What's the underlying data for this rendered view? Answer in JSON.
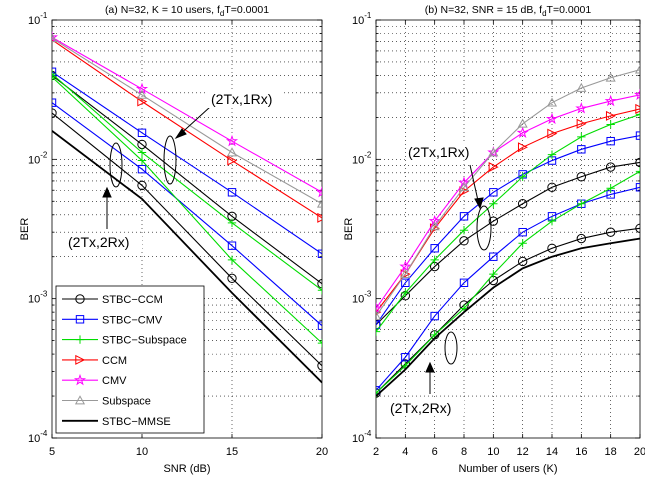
{
  "chart_data": [
    {
      "type": "line",
      "title": "(a) N=32, K = 10 users, f",
      "title_sub": "d",
      "title_end": "T=0.0001",
      "xlabel": "SNR (dB)",
      "ylabel": "BER",
      "xlim": [
        5,
        20
      ],
      "ylim": [
        0.0001,
        0.1
      ],
      "yscale": "log",
      "xticks": [
        "5",
        "10",
        "15",
        "20"
      ],
      "yticks": [
        {
          "base": "10",
          "exp": "-4"
        },
        {
          "base": "10",
          "exp": "-3"
        },
        {
          "base": "10",
          "exp": "-2"
        },
        {
          "base": "10",
          "exp": "-1"
        }
      ],
      "grid": true,
      "legend_position": "bottom-left",
      "annotations": [
        "(2Tx,1Rx)",
        "(2Tx,2Rx)"
      ],
      "series": [
        {
          "name": "STBC−CCM",
          "marker": "circle",
          "color": "#000000",
          "x": [
            5,
            10,
            15,
            20
          ],
          "y": [
            0.0215,
            0.0065,
            0.0014,
            0.00033
          ],
          "x2": [
            5,
            10,
            15,
            20
          ],
          "y2": [
            0.04,
            0.0128,
            0.0039,
            0.00128
          ]
        },
        {
          "name": "STBC−CMV",
          "marker": "square",
          "color": "#0000ff",
          "x": [
            5,
            10,
            15,
            20
          ],
          "y": [
            0.0255,
            0.0085,
            0.0024,
            0.00064
          ],
          "x2": [
            5,
            10,
            15,
            20
          ],
          "y2": [
            0.0425,
            0.0155,
            0.0058,
            0.0021
          ]
        },
        {
          "name": "STBC−Subspace",
          "marker": "plus",
          "color": "#00dd00",
          "x": [
            5,
            10,
            15,
            20
          ],
          "y": [
            0.039,
            0.0098,
            0.0019,
            0.00048
          ],
          "x2": [
            5,
            10,
            15,
            20
          ],
          "y2": [
            0.041,
            0.0112,
            0.0035,
            0.00115
          ]
        },
        {
          "name": "CCM",
          "marker": "triangle-right",
          "color": "#ff0000",
          "x": [
            5,
            10,
            15,
            20
          ],
          "y": [
            0.072,
            0.026,
            0.0098,
            0.0038
          ]
        },
        {
          "name": "CMV",
          "marker": "star",
          "color": "#ff00ff",
          "x": [
            5,
            10,
            15,
            20
          ],
          "y": [
            0.075,
            0.032,
            0.0135,
            0.0058
          ]
        },
        {
          "name": "Subspace",
          "marker": "triangle-up",
          "color": "#999999",
          "x": [
            5,
            10,
            15,
            20
          ],
          "y": [
            0.074,
            0.029,
            0.0112,
            0.0048
          ]
        },
        {
          "name": "STBC−MMSE",
          "marker": "none",
          "color": "#000000",
          "x": [
            5,
            10,
            15,
            20
          ],
          "y": [
            0.016,
            0.0052,
            0.0011,
            0.00025
          ]
        }
      ]
    },
    {
      "type": "line",
      "title": "(b) N=32, SNR = 15 dB, f",
      "title_sub": "d",
      "title_end": "T=0.0001",
      "xlabel": "Number of users (K)",
      "ylabel": "BER",
      "xlim": [
        2,
        20
      ],
      "ylim": [
        0.0001,
        0.1
      ],
      "yscale": "log",
      "xticks": [
        "2",
        "4",
        "6",
        "8",
        "10",
        "12",
        "14",
        "16",
        "18",
        "20"
      ],
      "yticks": [
        {
          "base": "10",
          "exp": "-4"
        },
        {
          "base": "10",
          "exp": "-3"
        },
        {
          "base": "10",
          "exp": "-2"
        },
        {
          "base": "10",
          "exp": "-1"
        }
      ],
      "grid": true,
      "annotations": [
        "(2Tx,1Rx)",
        "(2Tx,2Rx)"
      ],
      "series": [
        {
          "name": "STBC−CCM",
          "marker": "circle",
          "color": "#000000",
          "x": [
            2,
            4,
            6,
            8,
            10,
            12,
            14,
            16,
            18,
            20
          ],
          "y": [
            0.00021,
            0.00034,
            0.00055,
            0.0009,
            0.00135,
            0.00185,
            0.0023,
            0.0027,
            0.003,
            0.0032
          ],
          "x2": [
            2,
            4,
            6,
            8,
            10,
            12,
            14,
            16,
            18,
            20
          ],
          "y2": [
            0.00065,
            0.00105,
            0.0017,
            0.0026,
            0.0036,
            0.0048,
            0.0063,
            0.0075,
            0.0088,
            0.0095
          ]
        },
        {
          "name": "STBC−CMV",
          "marker": "square",
          "color": "#0000ff",
          "x": [
            2,
            4,
            6,
            8,
            10,
            12,
            14,
            16,
            18,
            20
          ],
          "y": [
            0.00022,
            0.00038,
            0.00075,
            0.0013,
            0.002,
            0.003,
            0.0039,
            0.0048,
            0.0056,
            0.0063
          ],
          "x2": [
            2,
            4,
            6,
            8,
            10,
            12,
            14,
            16,
            18,
            20
          ],
          "y2": [
            0.00065,
            0.0013,
            0.0023,
            0.0039,
            0.0058,
            0.0078,
            0.0098,
            0.0118,
            0.0135,
            0.0148
          ]
        },
        {
          "name": "STBC−Subspace",
          "marker": "plus",
          "color": "#00dd00",
          "x": [
            2,
            4,
            6,
            8,
            10,
            12,
            14,
            16,
            18,
            20
          ],
          "y": [
            0.00021,
            0.00033,
            0.00055,
            0.00085,
            0.0015,
            0.0025,
            0.0036,
            0.0048,
            0.0062,
            0.0082
          ],
          "x2": [
            2,
            4,
            6,
            8,
            10,
            12,
            14,
            16,
            18,
            20
          ],
          "y2": [
            0.00058,
            0.0011,
            0.0019,
            0.0031,
            0.0048,
            0.0075,
            0.0108,
            0.0145,
            0.0178,
            0.021
          ]
        },
        {
          "name": "CCM",
          "marker": "triangle-right",
          "color": "#ff0000",
          "x": [
            2,
            4,
            6,
            8,
            10,
            12,
            14,
            16,
            18,
            20
          ],
          "y": [
            0.0008,
            0.0015,
            0.0032,
            0.0059,
            0.0088,
            0.0122,
            0.0153,
            0.018,
            0.0205,
            0.023
          ]
        },
        {
          "name": "CMV",
          "marker": "star",
          "color": "#ff00ff",
          "x": [
            2,
            4,
            6,
            8,
            10,
            12,
            14,
            16,
            18,
            20
          ],
          "y": [
            0.00085,
            0.0017,
            0.0036,
            0.0068,
            0.0112,
            0.0155,
            0.0195,
            0.0232,
            0.0262,
            0.029
          ]
        },
        {
          "name": "Subspace",
          "marker": "triangle-up",
          "color": "#999999",
          "x": [
            2,
            4,
            6,
            8,
            10,
            12,
            14,
            16,
            18,
            20
          ],
          "y": [
            0.00075,
            0.0015,
            0.0033,
            0.0063,
            0.0112,
            0.018,
            0.0255,
            0.0325,
            0.0385,
            0.044
          ]
        },
        {
          "name": "STBC−MMSE",
          "marker": "none",
          "color": "#000000",
          "x": [
            2,
            4,
            6,
            8,
            10,
            12,
            14,
            16,
            18,
            20
          ],
          "y": [
            0.0002,
            0.00031,
            0.00052,
            0.0008,
            0.0012,
            0.00165,
            0.002,
            0.0023,
            0.0025,
            0.0027
          ]
        }
      ]
    }
  ]
}
